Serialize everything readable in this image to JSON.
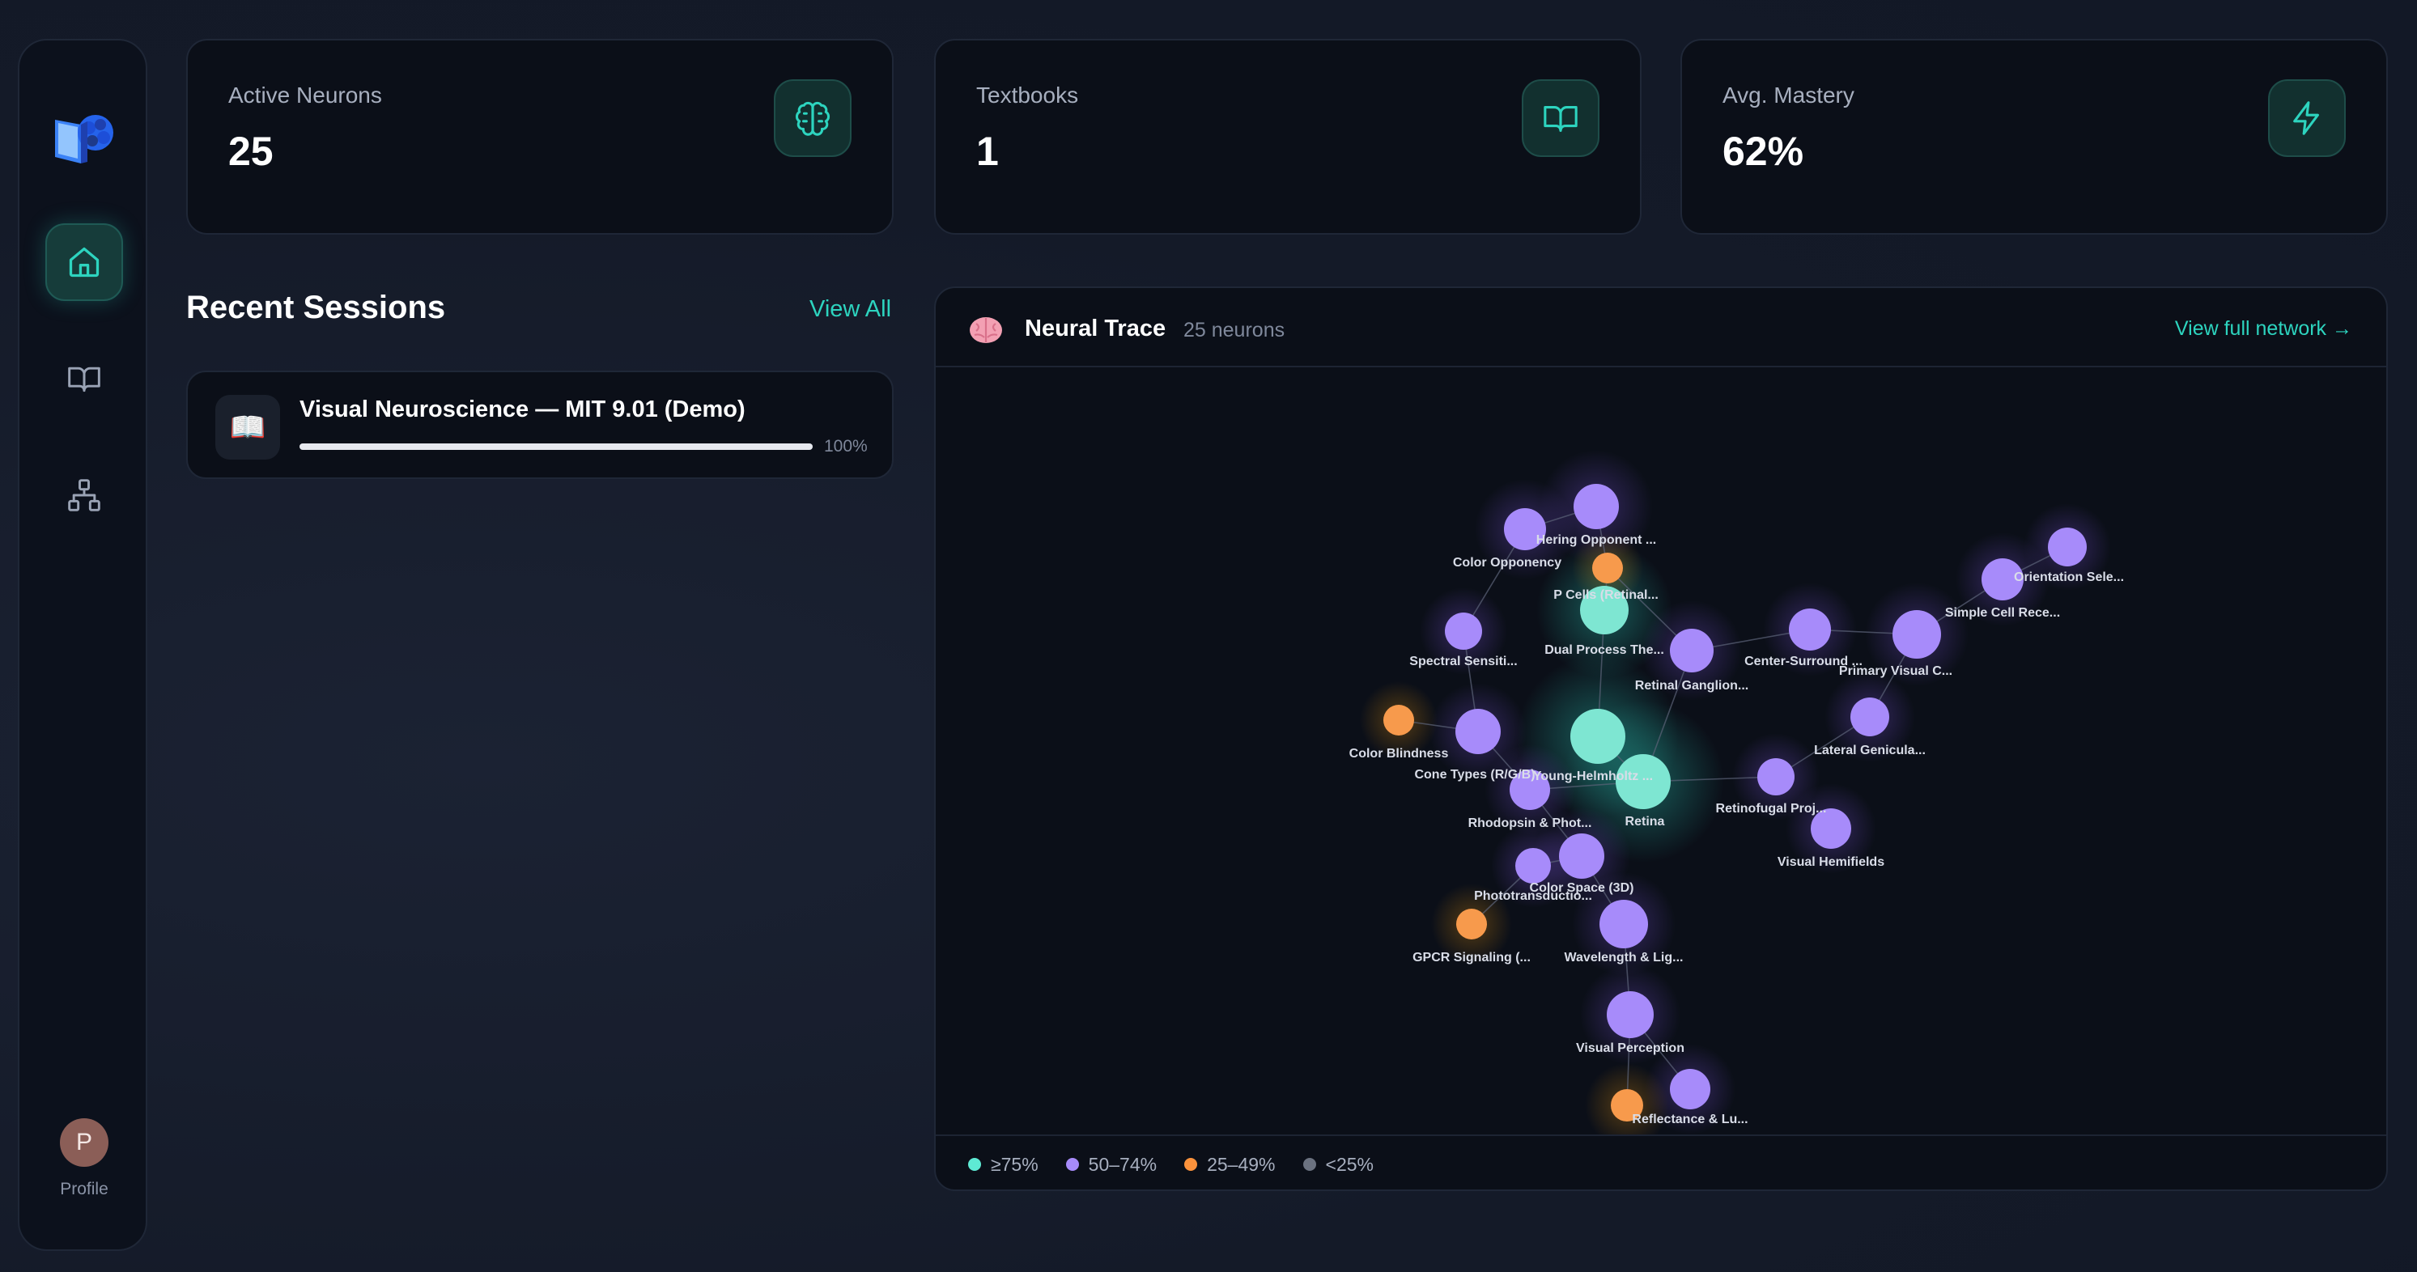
{
  "sidebar": {
    "logo_icon": "book-brain-logo-icon",
    "nav": [
      {
        "name": "home",
        "icon": "home-icon",
        "active": true
      },
      {
        "name": "library",
        "icon": "book-icon",
        "active": false
      },
      {
        "name": "network",
        "icon": "hierarchy-icon",
        "active": false
      }
    ],
    "profile": {
      "initial": "P",
      "label": "Profile"
    }
  },
  "stats": [
    {
      "label": "Active Neurons",
      "value": "25",
      "icon": "brain-icon"
    },
    {
      "label": "Textbooks",
      "value": "1",
      "icon": "book-icon"
    },
    {
      "label": "Avg. Mastery",
      "value": "62%",
      "icon": "lightning-icon"
    }
  ],
  "recent": {
    "title": "Recent Sessions",
    "view_all": "View All",
    "sessions": [
      {
        "icon": "📖",
        "title": "Visual Neuroscience — MIT 9.01 (Demo)",
        "progress": 1.0,
        "progress_label": "100%"
      }
    ]
  },
  "trace": {
    "icon": "🧠",
    "title": "Neural Trace",
    "count": "25 neurons",
    "link": "View full network →",
    "legend": [
      {
        "label": "≥75%",
        "color": "#5eead4"
      },
      {
        "label": "50–74%",
        "color": "#a78bfa"
      },
      {
        "label": "25–49%",
        "color": "#fb923c"
      },
      {
        "label": "<25%",
        "color": "#6b7280"
      }
    ]
  },
  "colors": {
    "accent": "#2dd4bf",
    "mastery_high": "#7ee6d2",
    "mastery_mid": "#a78bfa",
    "mastery_low": "#f79a4c"
  }
}
